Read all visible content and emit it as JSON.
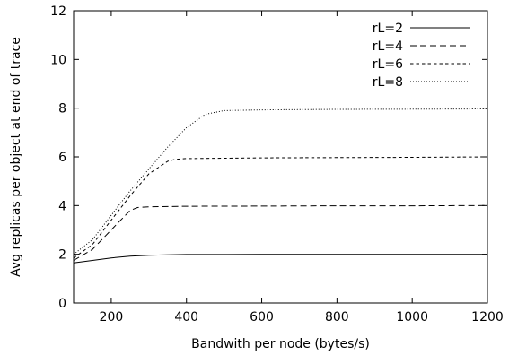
{
  "chart_data": {
    "type": "line",
    "title": "",
    "xlabel": "Bandwith per node (bytes/s)",
    "ylabel": "Avg replicas per object at end of trace",
    "xlim": [
      100,
      1200
    ],
    "ylim": [
      0,
      12
    ],
    "xticks": [
      200,
      400,
      600,
      800,
      1000,
      1200
    ],
    "yticks": [
      0,
      2,
      4,
      6,
      8,
      10,
      12
    ],
    "grid": false,
    "legend_position": "top-right",
    "series": [
      {
        "name": "rL=2",
        "dash": "solid",
        "x": [
          100,
          150,
          200,
          250,
          300,
          350,
          400,
          500,
          600,
          800,
          1000,
          1200
        ],
        "y": [
          1.65,
          1.75,
          1.85,
          1.92,
          1.96,
          1.98,
          1.99,
          1.99,
          2.0,
          2.0,
          2.0,
          2.0
        ]
      },
      {
        "name": "rL=4",
        "dash": "dashed",
        "x": [
          100,
          150,
          200,
          250,
          270,
          300,
          400,
          600,
          800,
          1000,
          1200
        ],
        "y": [
          1.75,
          2.2,
          3.0,
          3.8,
          3.92,
          3.95,
          3.97,
          3.98,
          3.99,
          3.99,
          4.0
        ]
      },
      {
        "name": "rL=6",
        "dash": "short-dashed",
        "x": [
          100,
          150,
          200,
          250,
          300,
          350,
          370,
          400,
          600,
          800,
          1000,
          1200
        ],
        "y": [
          1.85,
          2.4,
          3.4,
          4.4,
          5.3,
          5.82,
          5.9,
          5.93,
          5.96,
          5.97,
          5.98,
          6.0
        ]
      },
      {
        "name": "rL=8",
        "dash": "dotted",
        "x": [
          100,
          150,
          200,
          250,
          300,
          350,
          400,
          450,
          500,
          600,
          800,
          1000,
          1200
        ],
        "y": [
          2.0,
          2.6,
          3.6,
          4.6,
          5.5,
          6.4,
          7.2,
          7.75,
          7.9,
          7.93,
          7.95,
          7.96,
          7.97
        ]
      }
    ]
  }
}
